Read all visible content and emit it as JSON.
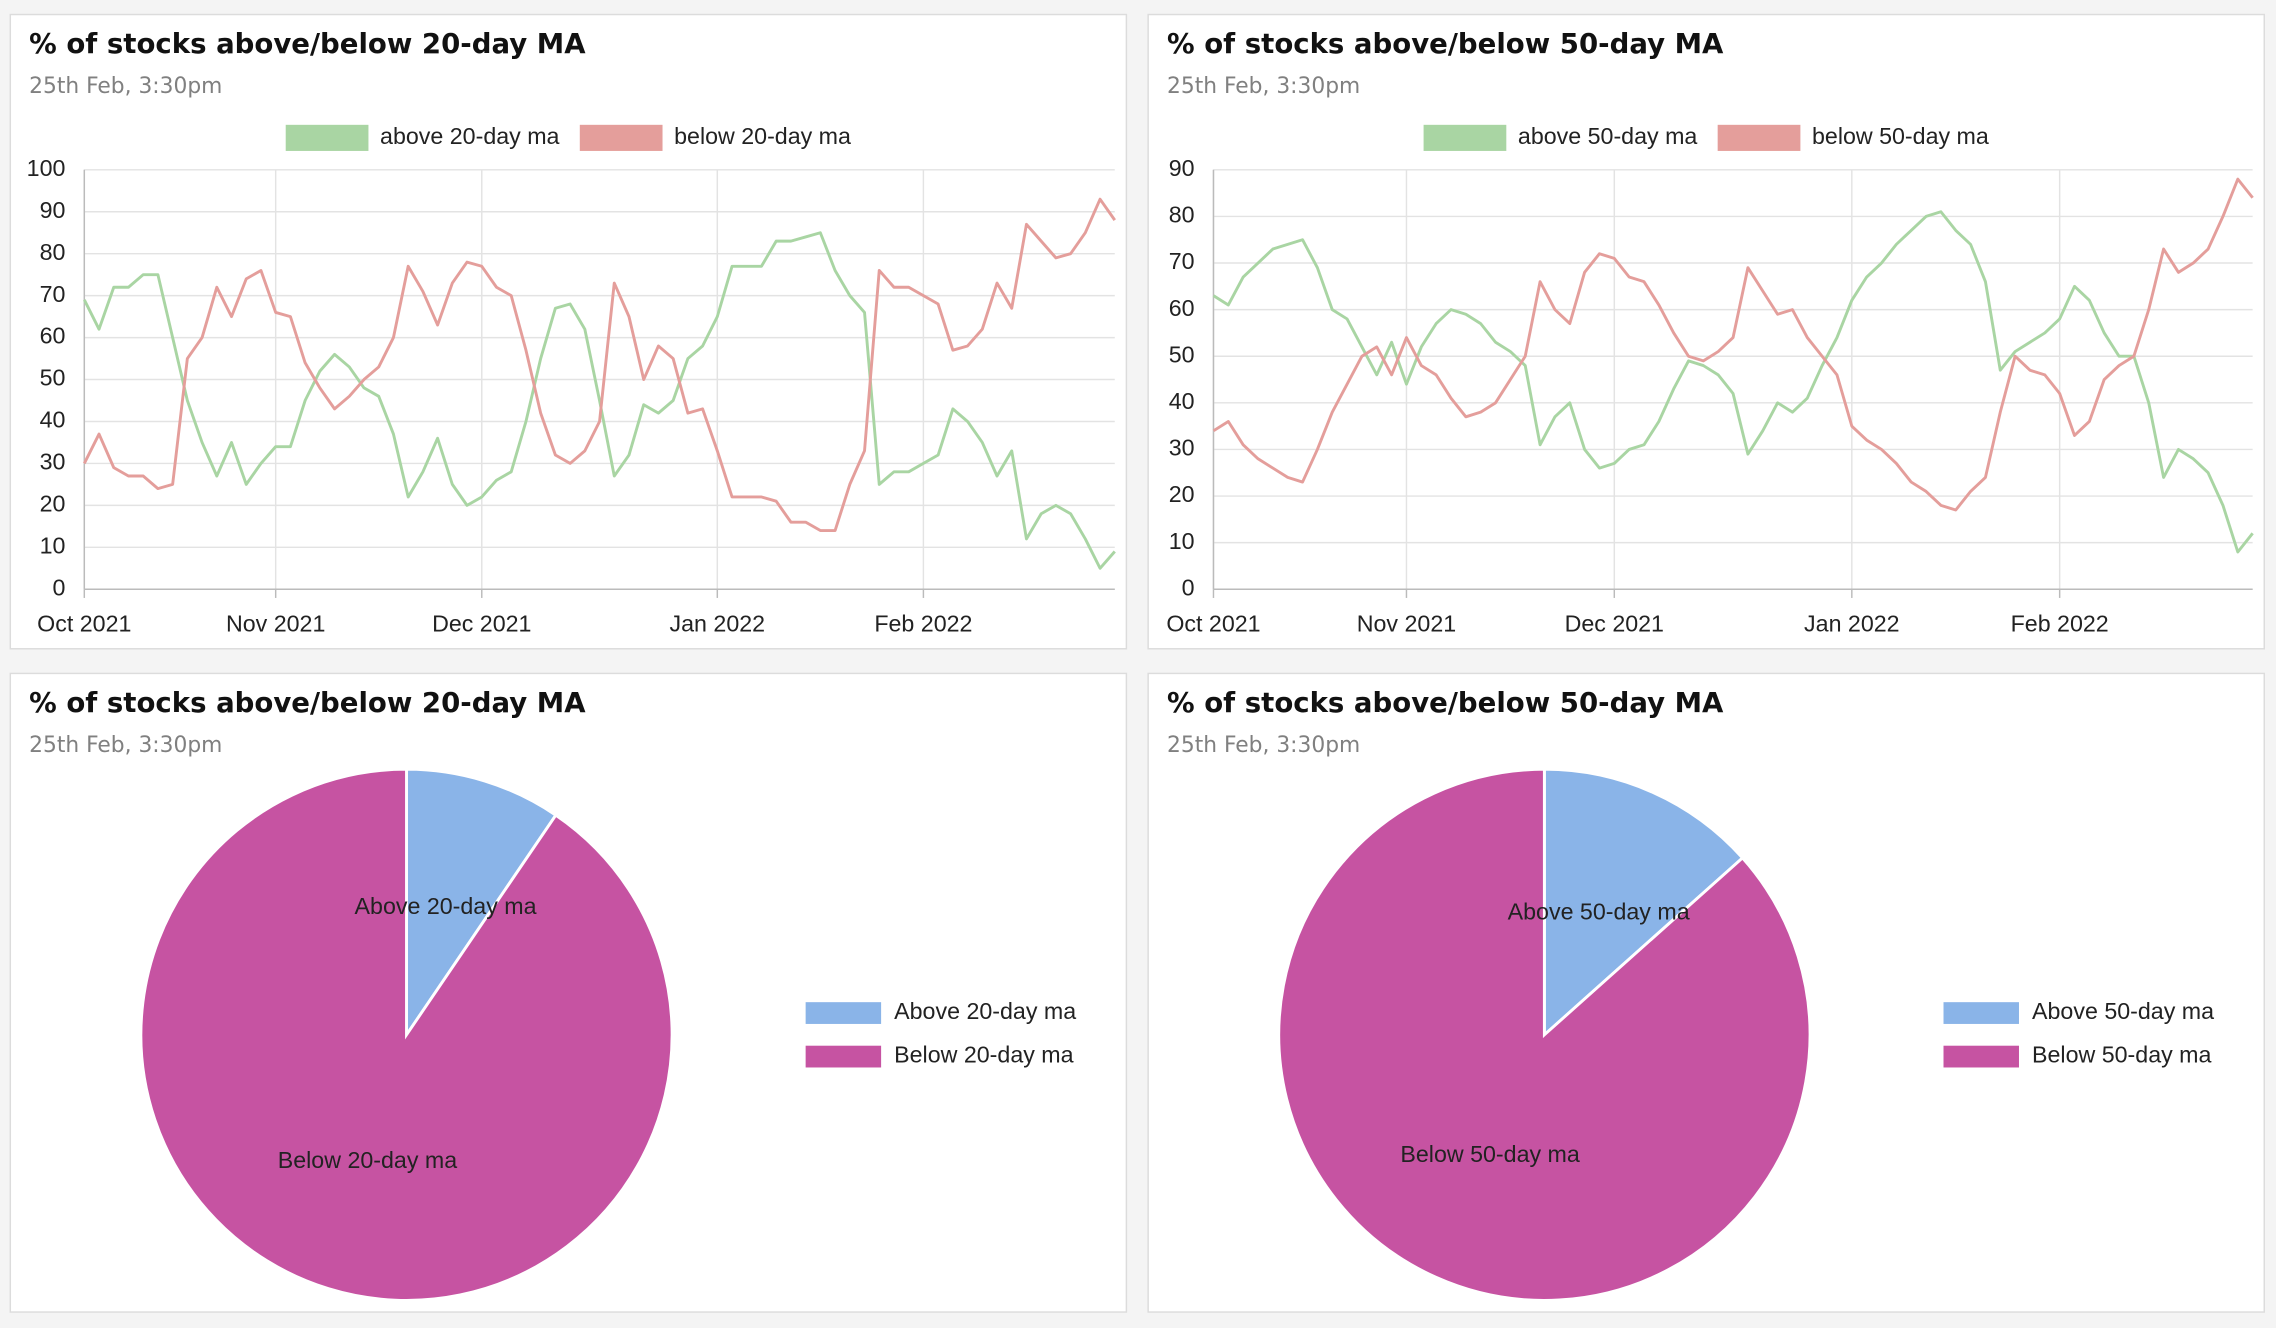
{
  "chart_data": [
    {
      "type": "line",
      "title": "% of stocks above/below 20-day MA",
      "subtitle": "25th Feb, 3:30pm",
      "categories": [
        "Oct 2021",
        null,
        null,
        null,
        null,
        null,
        null,
        null,
        null,
        null,
        null,
        null,
        null,
        "Nov 2021",
        null,
        null,
        null,
        null,
        null,
        null,
        null,
        null,
        null,
        null,
        null,
        null,
        null,
        "Dec 2021",
        null,
        null,
        null,
        null,
        null,
        null,
        null,
        null,
        null,
        null,
        null,
        null,
        null,
        null,
        null,
        "Jan 2022",
        null,
        null,
        null,
        null,
        null,
        null,
        null,
        null,
        null,
        null,
        null,
        null,
        null,
        "Feb 2022",
        null,
        null,
        null,
        null,
        null,
        null,
        null,
        null,
        null,
        null,
        null,
        null,
        null
      ],
      "series": [
        {
          "name": "above 20-day ma",
          "color": "#a9d5a3",
          "values": [
            69,
            62,
            72,
            72,
            75,
            75,
            60,
            45,
            35,
            27,
            35,
            25,
            30,
            34,
            34,
            45,
            52,
            56,
            53,
            48,
            46,
            37,
            22,
            28,
            36,
            25,
            20,
            22,
            26,
            28,
            40,
            55,
            67,
            68,
            62,
            45,
            27,
            32,
            44,
            42,
            45,
            55,
            58,
            65,
            77,
            77,
            77,
            83,
            83,
            84,
            85,
            76,
            70,
            66,
            25,
            28,
            28,
            30,
            32,
            43,
            40,
            35,
            27,
            33,
            12,
            18,
            20,
            18,
            12,
            5,
            9
          ]
        },
        {
          "name": "below 20-day ma",
          "color": "#e49e9b",
          "values": [
            30,
            37,
            29,
            27,
            27,
            24,
            25,
            55,
            60,
            72,
            65,
            74,
            76,
            66,
            65,
            54,
            48,
            43,
            46,
            50,
            53,
            60,
            77,
            71,
            63,
            73,
            78,
            77,
            72,
            70,
            57,
            42,
            32,
            30,
            33,
            40,
            73,
            65,
            50,
            58,
            55,
            42,
            43,
            33,
            22,
            22,
            22,
            21,
            16,
            16,
            14,
            14,
            25,
            33,
            76,
            72,
            72,
            70,
            68,
            57,
            58,
            62,
            73,
            67,
            87,
            83,
            79,
            80,
            85,
            93,
            88
          ]
        }
      ],
      "ylim": [
        0,
        100
      ],
      "yticks": [
        0,
        10,
        20,
        30,
        40,
        50,
        60,
        70,
        80,
        90,
        100
      ],
      "grid": true,
      "legend": "top"
    },
    {
      "type": "line",
      "title": "% of stocks above/below 50-day MA",
      "subtitle": "25th Feb, 3:30pm",
      "categories": [
        "Oct 2021",
        null,
        null,
        null,
        null,
        null,
        null,
        null,
        null,
        null,
        null,
        null,
        null,
        "Nov 2021",
        null,
        null,
        null,
        null,
        null,
        null,
        null,
        null,
        null,
        null,
        null,
        null,
        null,
        "Dec 2021",
        null,
        null,
        null,
        null,
        null,
        null,
        null,
        null,
        null,
        null,
        null,
        null,
        null,
        null,
        null,
        "Jan 2022",
        null,
        null,
        null,
        null,
        null,
        null,
        null,
        null,
        null,
        null,
        null,
        null,
        null,
        "Feb 2022",
        null,
        null,
        null,
        null,
        null,
        null,
        null,
        null,
        null,
        null,
        null,
        null,
        null
      ],
      "series": [
        {
          "name": "above 50-day ma",
          "color": "#a9d5a3",
          "values": [
            63,
            61,
            67,
            70,
            73,
            74,
            75,
            69,
            60,
            58,
            52,
            46,
            53,
            44,
            52,
            57,
            60,
            59,
            57,
            53,
            51,
            48,
            31,
            37,
            40,
            30,
            26,
            27,
            30,
            31,
            36,
            43,
            49,
            48,
            46,
            42,
            29,
            34,
            40,
            38,
            41,
            48,
            54,
            62,
            67,
            70,
            74,
            77,
            80,
            81,
            77,
            74,
            66,
            47,
            51,
            53,
            55,
            58,
            65,
            62,
            55,
            50,
            50,
            40,
            24,
            30,
            28,
            25,
            18,
            8,
            12
          ]
        },
        {
          "name": "below 50-day ma",
          "color": "#e49e9b",
          "values": [
            34,
            36,
            31,
            28,
            26,
            24,
            23,
            30,
            38,
            44,
            50,
            52,
            46,
            54,
            48,
            46,
            41,
            37,
            38,
            40,
            45,
            50,
            66,
            60,
            57,
            68,
            72,
            71,
            67,
            66,
            61,
            55,
            50,
            49,
            51,
            54,
            69,
            64,
            59,
            60,
            54,
            50,
            46,
            35,
            32,
            30,
            27,
            23,
            21,
            18,
            17,
            21,
            24,
            38,
            50,
            47,
            46,
            42,
            33,
            36,
            45,
            48,
            50,
            60,
            73,
            68,
            70,
            73,
            80,
            88,
            84
          ]
        }
      ],
      "ylim": [
        0,
        90
      ],
      "yticks": [
        0,
        10,
        20,
        30,
        40,
        50,
        60,
        70,
        80,
        90
      ],
      "grid": true,
      "legend": "top"
    },
    {
      "type": "pie",
      "title": "% of stocks above/below 20-day MA",
      "subtitle": "25th Feb, 3:30pm",
      "categories": [
        "Above 20-day ma",
        "Below 20-day ma"
      ],
      "values": [
        9.5,
        90.5
      ],
      "colors": [
        "#8ab4e8",
        "#c653a2"
      ],
      "legend": "right"
    },
    {
      "type": "pie",
      "title": "% of stocks above/below 50-day MA",
      "subtitle": "25th Feb, 3:30pm",
      "categories": [
        "Above 50-day ma",
        "Below 50-day ma"
      ],
      "values": [
        13.4,
        86.6
      ],
      "colors": [
        "#8ab4e8",
        "#c653a2"
      ],
      "legend": "right"
    }
  ]
}
